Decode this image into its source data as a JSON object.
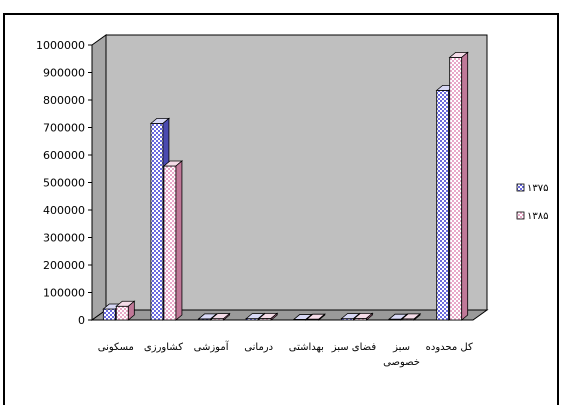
{
  "chart_data": {
    "type": "bar",
    "subtype": "3d-clustered-column",
    "categories": [
      "مسکونی",
      "کشاورزی",
      "آموزشی",
      "درمانی",
      "بهداشتی",
      "فضای سبز",
      "سبز خصوصی",
      "کل محدوده"
    ],
    "category_lines": [
      [
        "مسکونی"
      ],
      [
        "کشاورزی"
      ],
      [
        "آموزشی"
      ],
      [
        "درمانی"
      ],
      [
        "بهداشتی"
      ],
      [
        "فضای سبز"
      ],
      [
        "سبز",
        "خصوصی"
      ],
      [
        "کل محدوده"
      ]
    ],
    "series": [
      {
        "name": "۱۳۷۵",
        "values": [
          40000,
          715000,
          4000,
          5000,
          2000,
          5000,
          3000,
          835000
        ]
      },
      {
        "name": "۱۳۸۵",
        "values": [
          50000,
          560000,
          5000,
          6000,
          3000,
          6000,
          4000,
          955000
        ]
      }
    ],
    "ylim": [
      0,
      1000000
    ],
    "yticks": [
      "0",
      "100000",
      "200000",
      "300000",
      "400000",
      "500000",
      "600000",
      "700000",
      "800000",
      "900000",
      "1000000"
    ],
    "grid": false,
    "legend_position": "right",
    "wall_color": "#bfbfbf",
    "series_colors": [
      "#6a6adf",
      "#e0a0c0"
    ]
  }
}
